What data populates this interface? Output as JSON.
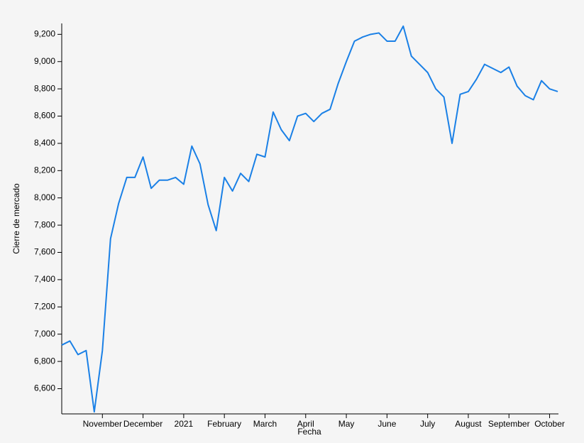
{
  "chart_data": {
    "type": "line",
    "x_label": "Fecha",
    "y_label": "Cierre de mercado",
    "categories": [
      null,
      null,
      null,
      null,
      null,
      "November",
      null,
      null,
      null,
      null,
      "December",
      null,
      null,
      null,
      null,
      "2021",
      null,
      null,
      null,
      null,
      "February",
      null,
      null,
      null,
      null,
      "March",
      null,
      null,
      null,
      null,
      "April",
      null,
      null,
      null,
      null,
      "May",
      null,
      null,
      null,
      null,
      "June",
      null,
      null,
      null,
      null,
      "July",
      null,
      null,
      null,
      null,
      "August",
      null,
      null,
      null,
      null,
      "September",
      null,
      null,
      null,
      null,
      "October",
      null
    ],
    "series": [
      {
        "color": "#1a80e6",
        "values": [
          6920,
          6950,
          6850,
          6880,
          6430,
          6880,
          7700,
          7960,
          8150,
          8150,
          8300,
          8070,
          8130,
          8130,
          8150,
          8100,
          8380,
          8250,
          7950,
          7760,
          8150,
          8050,
          8180,
          8120,
          8320,
          8300,
          8630,
          8500,
          8420,
          8600,
          8620,
          8560,
          8620,
          8650,
          8840,
          9000,
          9150,
          9180,
          9200,
          9210,
          9150,
          9150,
          9260,
          9040,
          8980,
          8920,
          8800,
          8740,
          8400,
          8760,
          8780,
          8870,
          8980,
          8950,
          8920,
          8960,
          8820,
          8750,
          8720,
          8860,
          8800,
          8780
        ]
      }
    ],
    "ylim": [
      6415,
      9280
    ],
    "yticks": [
      {
        "value": 6600,
        "label": "6,600"
      },
      {
        "value": 6800,
        "label": "6,800"
      },
      {
        "value": 7000,
        "label": "7,000"
      },
      {
        "value": 7200,
        "label": "7,200"
      },
      {
        "value": 7400,
        "label": "7,400"
      },
      {
        "value": 7600,
        "label": "7,600"
      },
      {
        "value": 7800,
        "label": "7,800"
      },
      {
        "value": 8000,
        "label": "8,000"
      },
      {
        "value": 8200,
        "label": "8,200"
      },
      {
        "value": 8400,
        "label": "8,400"
      },
      {
        "value": 8600,
        "label": "8,600"
      },
      {
        "value": 8800,
        "label": "8,800"
      },
      {
        "value": 9000,
        "label": "9,000"
      },
      {
        "value": 9200,
        "label": "9,200"
      }
    ]
  }
}
